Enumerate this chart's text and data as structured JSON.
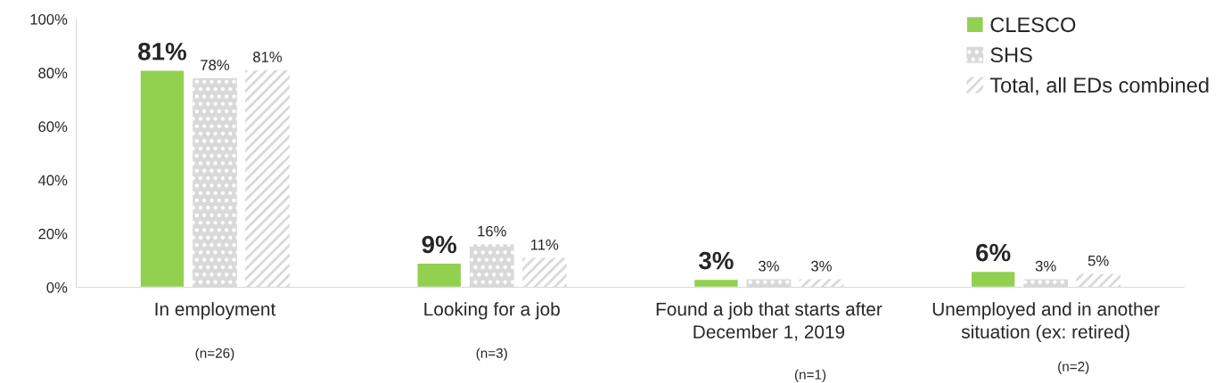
{
  "chart_data": {
    "type": "bar",
    "categories": [
      "In employment",
      "Looking for a job",
      "Found a job that starts after\nDecember 1, 2019",
      "Unemployed and in another\nsituation (ex: retired)"
    ],
    "series": [
      {
        "name": "CLESCO",
        "color": "#92d050",
        "values": [
          81,
          9,
          3,
          6
        ],
        "value_labels": [
          "81%",
          "9%",
          "3%",
          "6%"
        ]
      },
      {
        "name": "SHS",
        "color": "#d9d9d9",
        "values": [
          78,
          16,
          3,
          3
        ],
        "value_labels": [
          "78%",
          "16%",
          "3%",
          "3%"
        ]
      },
      {
        "name": "Total, all EDs combined",
        "color": "#d9d9d9",
        "values": [
          81,
          11,
          3,
          5
        ],
        "value_labels": [
          "81%",
          "11%",
          "3%",
          "5%"
        ]
      }
    ],
    "ylim": [
      0,
      100
    ],
    "yticks": [
      {
        "value": 0,
        "label": "0%"
      },
      {
        "value": 20,
        "label": "20%"
      },
      {
        "value": 40,
        "label": "40%"
      },
      {
        "value": 60,
        "label": "60%"
      },
      {
        "value": 80,
        "label": "80%"
      },
      {
        "value": 100,
        "label": "100%"
      }
    ],
    "annotations": [
      "(n=26)",
      "(n=3)",
      "(n=1)",
      "(n=2)"
    ],
    "legend": "top right",
    "grid": false
  }
}
